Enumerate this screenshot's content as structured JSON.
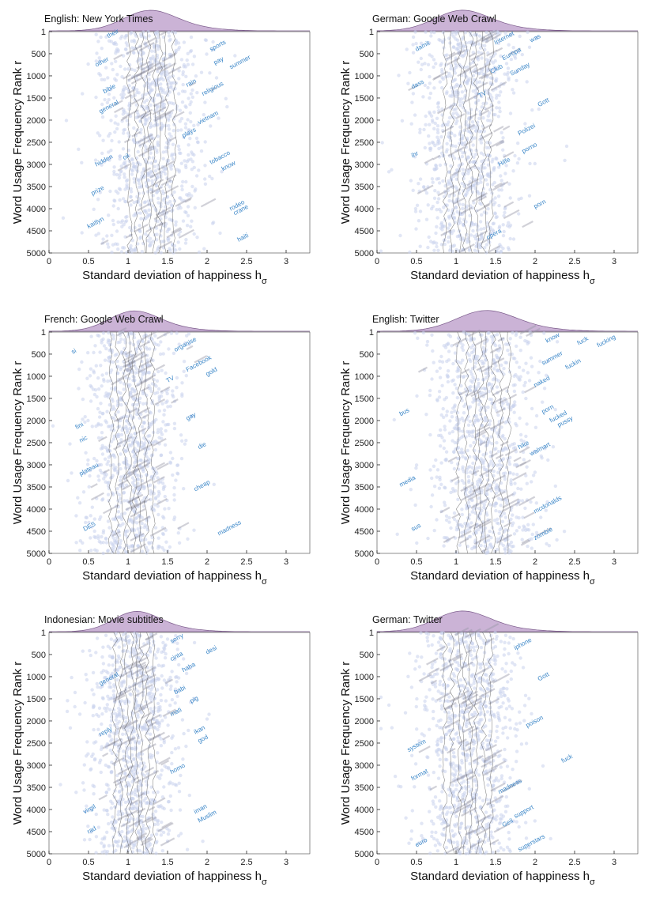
{
  "chart_data": [
    {
      "type": "scatter",
      "title": "English: New York Times",
      "xlabel": "Standard deviation of happiness h",
      "xlabel_sub": "σ",
      "ylabel": "Word Usage Frequency Rank r",
      "xlim": [
        0,
        3.3
      ],
      "ylim": [
        1,
        5000
      ],
      "xticks": [
        "0",
        "0.5",
        "1",
        "1.5",
        "2",
        "2.5",
        "3"
      ],
      "yticks": [
        "1",
        "500",
        "1000",
        "1500",
        "2000",
        "2500",
        "3000",
        "3500",
        "4000",
        "4500",
        "5000"
      ],
      "x_center": 1.3,
      "x_spread": 0.32,
      "density_peak": 1.25,
      "words": [
        {
          "w": "sports",
          "x": 2.05,
          "r": 450
        },
        {
          "w": "pay",
          "x": 2.1,
          "r": 750
        },
        {
          "w": "summer",
          "x": 2.3,
          "r": 850
        },
        {
          "w": "religious",
          "x": 1.95,
          "r": 1450
        },
        {
          "w": "tobacco",
          "x": 2.05,
          "r": 3000
        },
        {
          "w": "know",
          "x": 2.2,
          "r": 3150
        },
        {
          "w": "rodeo",
          "x": 2.3,
          "r": 4050
        },
        {
          "w": "crane",
          "x": 2.35,
          "r": 4150
        },
        {
          "w": "haiti",
          "x": 2.4,
          "r": 4750
        },
        {
          "w": "hidden",
          "x": 0.6,
          "r": 3050
        },
        {
          "w": "prize",
          "x": 0.55,
          "r": 3700
        },
        {
          "w": "kaitlyn",
          "x": 0.5,
          "r": 4450
        },
        {
          "w": "their",
          "x": 0.75,
          "r": 150
        },
        {
          "w": "other",
          "x": 0.6,
          "r": 800
        },
        {
          "w": "general",
          "x": 0.65,
          "r": 1850
        },
        {
          "w": "bible",
          "x": 0.7,
          "r": 1400
        },
        {
          "w": "oil",
          "x": 0.95,
          "r": 2900
        },
        {
          "w": "plays",
          "x": 1.7,
          "r": 2400
        },
        {
          "w": "vietnam",
          "x": 1.9,
          "r": 2100
        },
        {
          "w": "rain",
          "x": 1.75,
          "r": 1250
        }
      ]
    },
    {
      "type": "scatter",
      "title": "German: Google Web Crawl",
      "xlabel": "Standard deviation of happiness h",
      "xlabel_sub": "σ",
      "ylabel": "Word Usage Frequency Rank r",
      "xlim": [
        0,
        3.3
      ],
      "ylim": [
        1,
        5000
      ],
      "xticks": [
        "0",
        "0.5",
        "1",
        "1.5",
        "2",
        "2.5",
        "3"
      ],
      "yticks": [
        "1",
        "500",
        "1000",
        "1500",
        "2000",
        "2500",
        "3000",
        "3500",
        "4000",
        "4500",
        "5000"
      ],
      "x_center": 1.15,
      "x_spread": 0.33,
      "density_peak": 1.05,
      "words": [
        {
          "w": "Internet",
          "x": 1.5,
          "r": 300
        },
        {
          "w": "was",
          "x": 1.95,
          "r": 250
        },
        {
          "w": "Europa",
          "x": 1.6,
          "r": 650
        },
        {
          "w": "Sunday",
          "x": 1.7,
          "r": 1000
        },
        {
          "w": "Gott",
          "x": 2.05,
          "r": 1700
        },
        {
          "w": "Polizei",
          "x": 1.8,
          "r": 2350
        },
        {
          "w": "porno",
          "x": 1.85,
          "r": 2750
        },
        {
          "w": "porn",
          "x": 2.0,
          "r": 4000
        },
        {
          "w": "damit",
          "x": 0.5,
          "r": 450
        },
        {
          "w": "dass",
          "x": 0.45,
          "r": 1300
        },
        {
          "w": "ihr",
          "x": 0.45,
          "r": 2850
        },
        {
          "w": "opera",
          "x": 1.4,
          "r": 4700
        },
        {
          "w": "Club",
          "x": 1.45,
          "r": 950
        },
        {
          "w": "TV",
          "x": 1.3,
          "r": 1500
        },
        {
          "w": "Hilfe",
          "x": 1.55,
          "r": 3050
        }
      ]
    },
    {
      "type": "scatter",
      "title": "French: Google Web Crawl",
      "xlabel": "Standard deviation of happiness h",
      "xlabel_sub": "σ",
      "ylabel": "Word Usage Frequency Rank r",
      "xlim": [
        0,
        3.3
      ],
      "ylim": [
        1,
        5000
      ],
      "xticks": [
        "0",
        "0.5",
        "1",
        "1.5",
        "2",
        "2.5",
        "3"
      ],
      "yticks": [
        "1",
        "500",
        "1000",
        "1500",
        "2000",
        "2500",
        "3000",
        "3500",
        "4000",
        "4500",
        "5000"
      ],
      "x_center": 1.05,
      "x_spread": 0.3,
      "density_peak": 1.05,
      "words": [
        {
          "w": "organise",
          "x": 1.6,
          "r": 450
        },
        {
          "w": "Facebook",
          "x": 1.75,
          "r": 900
        },
        {
          "w": "gold",
          "x": 2.0,
          "r": 1000
        },
        {
          "w": "gay",
          "x": 1.75,
          "r": 2000
        },
        {
          "w": "cheap",
          "x": 1.85,
          "r": 3600
        },
        {
          "w": "madness",
          "x": 2.15,
          "r": 4600
        },
        {
          "w": "die",
          "x": 1.9,
          "r": 2650
        },
        {
          "w": "TV",
          "x": 1.5,
          "r": 1150
        },
        {
          "w": "nic",
          "x": 0.4,
          "r": 2500
        },
        {
          "w": "fini",
          "x": 0.35,
          "r": 2200
        },
        {
          "w": "plateau",
          "x": 0.4,
          "r": 3250
        },
        {
          "w": "DES",
          "x": 0.45,
          "r": 4500
        },
        {
          "w": "si",
          "x": 0.3,
          "r": 500
        }
      ]
    },
    {
      "type": "scatter",
      "title": "English: Twitter",
      "xlabel": "Standard deviation of happiness h",
      "xlabel_sub": "σ",
      "ylabel": "Word Usage Frequency Rank r",
      "xlim": [
        0,
        3.3
      ],
      "ylim": [
        1,
        5000
      ],
      "xticks": [
        "0",
        "0.5",
        "1",
        "1.5",
        "2",
        "2.5",
        "3"
      ],
      "yticks": [
        "1",
        "500",
        "1000",
        "1500",
        "2000",
        "2500",
        "3000",
        "3500",
        "4000",
        "4500",
        "5000"
      ],
      "x_center": 1.35,
      "x_spread": 0.36,
      "density_peak": 1.35,
      "words": [
        {
          "w": "know",
          "x": 2.15,
          "r": 250
        },
        {
          "w": "fuck",
          "x": 2.55,
          "r": 300
        },
        {
          "w": "fucking",
          "x": 2.8,
          "r": 350
        },
        {
          "w": "summer",
          "x": 2.1,
          "r": 750
        },
        {
          "w": "fuckin",
          "x": 2.4,
          "r": 850
        },
        {
          "w": "naked",
          "x": 2.0,
          "r": 1250
        },
        {
          "w": "porn",
          "x": 2.1,
          "r": 1850
        },
        {
          "w": "fucked",
          "x": 2.2,
          "r": 2050
        },
        {
          "w": "pussy",
          "x": 2.3,
          "r": 2150
        },
        {
          "w": "walmart",
          "x": 1.95,
          "r": 2800
        },
        {
          "w": "mcdonalds",
          "x": 2.0,
          "r": 4100
        },
        {
          "w": "zombie",
          "x": 2.0,
          "r": 4700
        },
        {
          "w": "media",
          "x": 0.3,
          "r": 3500
        },
        {
          "w": "bus",
          "x": 0.3,
          "r": 1900
        },
        {
          "w": "sus",
          "x": 0.45,
          "r": 4500
        },
        {
          "w": "hike",
          "x": 1.8,
          "r": 2650
        }
      ]
    },
    {
      "type": "scatter",
      "title": "Indonesian: Movie subtitles",
      "xlabel": "Standard deviation of happiness h",
      "xlabel_sub": "σ",
      "ylabel": "Word Usage Frequency Rank r",
      "xlim": [
        0,
        3.3
      ],
      "ylim": [
        1,
        5000
      ],
      "xticks": [
        "0",
        "0.5",
        "1",
        "1.5",
        "2",
        "2.5",
        "3"
      ],
      "yticks": [
        "1",
        "500",
        "1000",
        "1500",
        "2000",
        "2500",
        "3000",
        "3500",
        "4000",
        "4500",
        "5000"
      ],
      "x_center": 1.08,
      "x_spread": 0.28,
      "density_peak": 1.08,
      "words": [
        {
          "w": "sorry",
          "x": 1.55,
          "r": 250
        },
        {
          "w": "desi",
          "x": 2.0,
          "r": 500
        },
        {
          "w": "cinta",
          "x": 1.55,
          "r": 650
        },
        {
          "w": "haha",
          "x": 1.7,
          "r": 900
        },
        {
          "w": "babi",
          "x": 1.6,
          "r": 1400
        },
        {
          "w": "pig",
          "x": 1.8,
          "r": 1600
        },
        {
          "w": "mati",
          "x": 1.55,
          "r": 1900
        },
        {
          "w": "ikan",
          "x": 1.85,
          "r": 2300
        },
        {
          "w": "god",
          "x": 1.9,
          "r": 2500
        },
        {
          "w": "homo",
          "x": 1.55,
          "r": 3200
        },
        {
          "w": "Muslim",
          "x": 1.9,
          "r": 4300
        },
        {
          "w": "iman",
          "x": 1.85,
          "r": 4100
        },
        {
          "w": "general",
          "x": 0.65,
          "r": 1200
        },
        {
          "w": "reply",
          "x": 0.65,
          "r": 2350
        },
        {
          "w": "virgil",
          "x": 0.45,
          "r": 4100
        },
        {
          "w": "rad",
          "x": 0.5,
          "r": 4550
        }
      ]
    },
    {
      "type": "scatter",
      "title": "German: Twitter",
      "xlabel": "Standard deviation of happiness h",
      "xlabel_sub": "σ",
      "ylabel": "Word Usage Frequency Rank r",
      "xlim": [
        0,
        3.3
      ],
      "ylim": [
        1,
        5000
      ],
      "xticks": [
        "0",
        "0.5",
        "1",
        "1.5",
        "2",
        "2.5",
        "3"
      ],
      "yticks": [
        "1",
        "500",
        "1000",
        "1500",
        "2000",
        "2500",
        "3000",
        "3500",
        "4000",
        "4500",
        "5000"
      ],
      "x_center": 1.15,
      "x_spread": 0.33,
      "density_peak": 1.05,
      "words": [
        {
          "w": "iphone",
          "x": 1.75,
          "r": 400
        },
        {
          "w": "Gott",
          "x": 2.05,
          "r": 1100
        },
        {
          "w": "poison",
          "x": 1.9,
          "r": 2150
        },
        {
          "w": "fuck",
          "x": 2.35,
          "r": 2950
        },
        {
          "w": "madness",
          "x": 1.55,
          "r": 3650
        },
        {
          "w": "support",
          "x": 1.75,
          "r": 4200
        },
        {
          "w": "superstars",
          "x": 1.8,
          "r": 4950
        },
        {
          "w": "Geil",
          "x": 1.6,
          "r": 4400
        },
        {
          "w": "format",
          "x": 0.45,
          "r": 3350
        },
        {
          "w": "system",
          "x": 0.4,
          "r": 2700
        },
        {
          "w": "euro",
          "x": 0.5,
          "r": 4850
        }
      ]
    }
  ]
}
